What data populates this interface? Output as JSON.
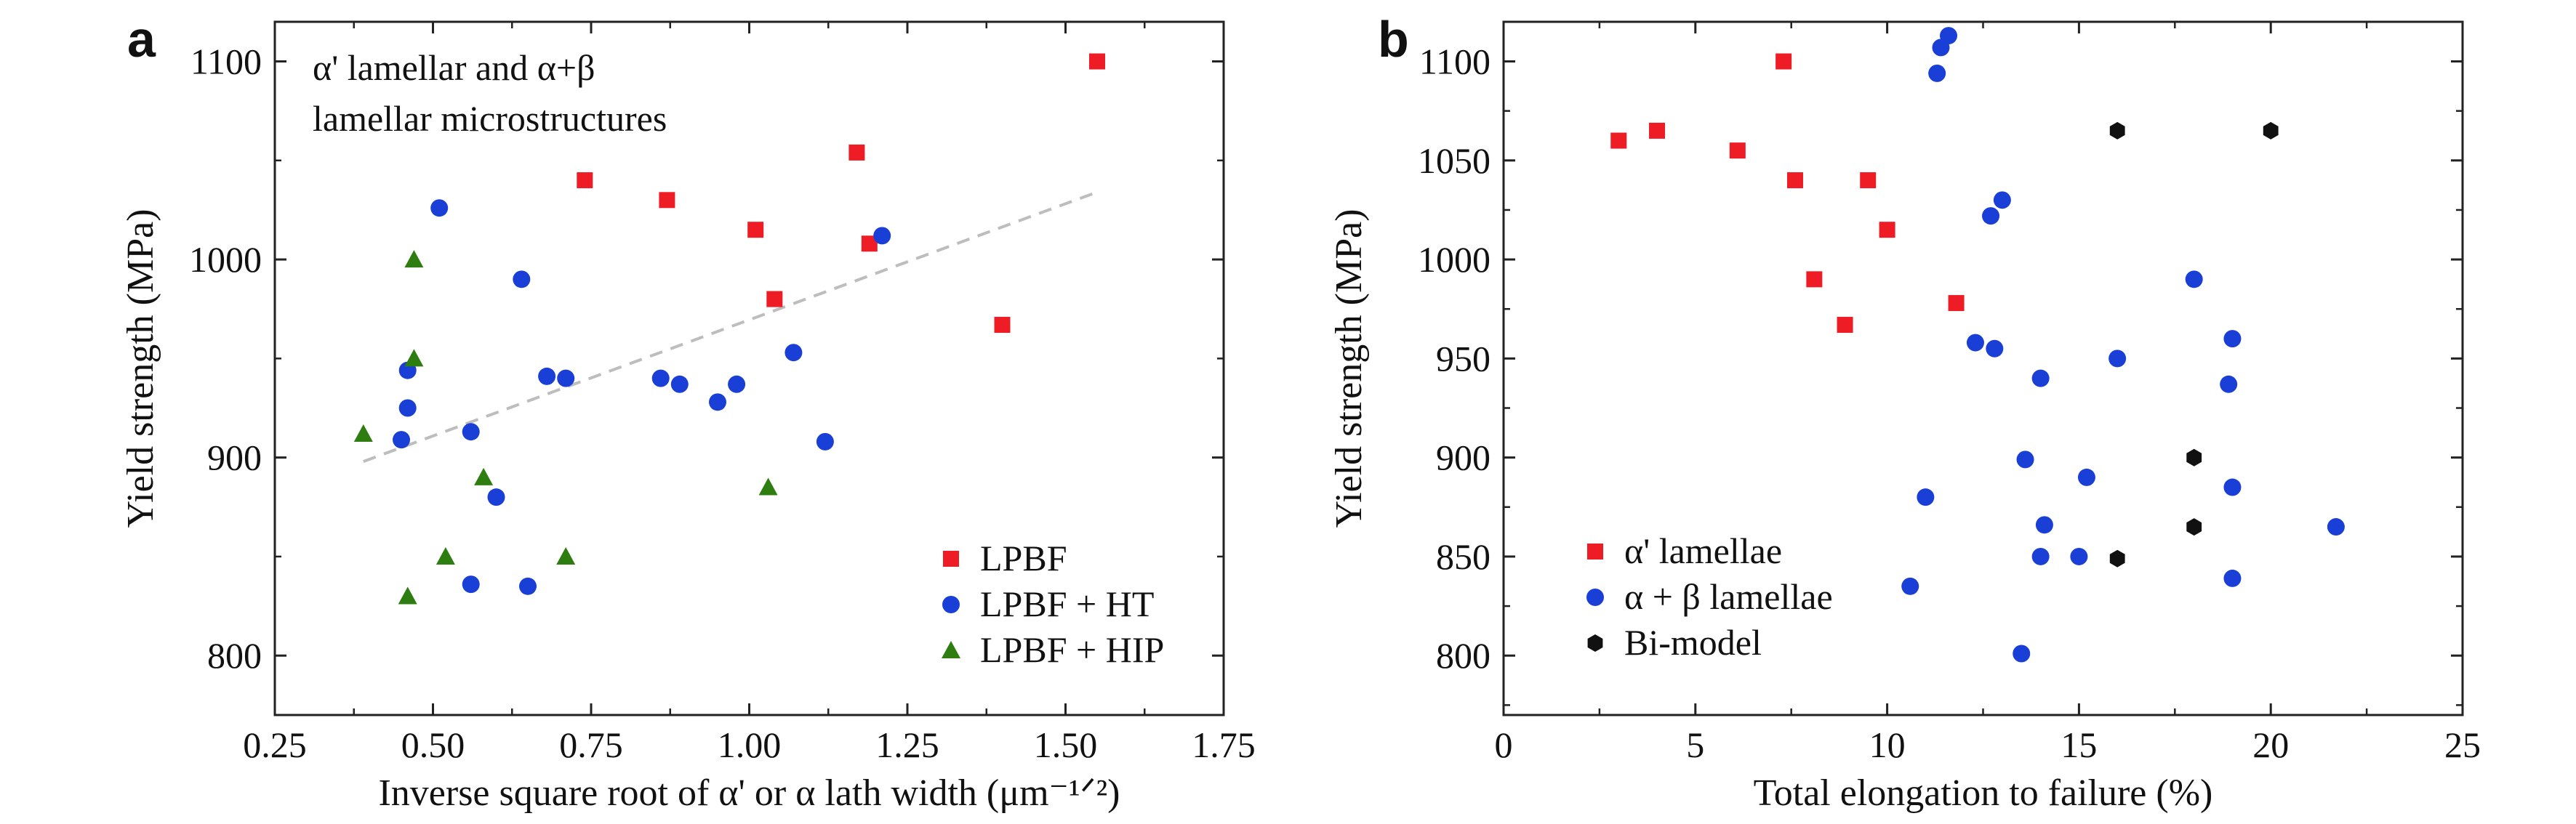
{
  "chart_data": [
    {
      "type": "scatter",
      "panel_label": "a",
      "title": "",
      "xlabel": "Inverse square root of α' or α lath width (μm⁻¹ᐟ²)",
      "ylabel": "Yield strength (MPa)",
      "xlim": [
        0.25,
        1.75
      ],
      "ylim": [
        770,
        1120
      ],
      "xticks": [
        "0.25",
        "0.50",
        "0.75",
        "1.00",
        "1.25",
        "1.50",
        "1.75"
      ],
      "yticks": [
        "800",
        "900",
        "1000",
        "1100"
      ],
      "annotation": [
        "α' lamellar and α+β",
        "lamellar microstructures"
      ],
      "legend_position": "bottom-right",
      "trendline": {
        "style": "dashed",
        "color": "#bdbdbd",
        "points": [
          [
            0.39,
            898
          ],
          [
            1.55,
            1034
          ]
        ]
      },
      "series": [
        {
          "name": "LPBF",
          "marker": "square",
          "color": "#ee1c25",
          "points": [
            [
              0.74,
              1040
            ],
            [
              0.87,
              1030
            ],
            [
              1.01,
              1015
            ],
            [
              1.04,
              980
            ],
            [
              1.17,
              1054
            ],
            [
              1.19,
              1008
            ],
            [
              1.4,
              967
            ],
            [
              1.55,
              1100
            ]
          ]
        },
        {
          "name": "LPBF + HT",
          "marker": "circle",
          "color": "#1a3fd6",
          "points": [
            [
              0.45,
              909
            ],
            [
              0.46,
              925
            ],
            [
              0.46,
              944
            ],
            [
              0.51,
              1026
            ],
            [
              0.56,
              913
            ],
            [
              0.56,
              836
            ],
            [
              0.6,
              880
            ],
            [
              0.64,
              990
            ],
            [
              0.65,
              835
            ],
            [
              0.68,
              941
            ],
            [
              0.71,
              940
            ],
            [
              0.86,
              940
            ],
            [
              0.89,
              937
            ],
            [
              0.95,
              928
            ],
            [
              0.98,
              937
            ],
            [
              1.07,
              953
            ],
            [
              1.12,
              908
            ],
            [
              1.21,
              1012
            ]
          ]
        },
        {
          "name": "LPBF + HIP",
          "marker": "triangle",
          "color": "#2e7d10",
          "points": [
            [
              0.39,
              912
            ],
            [
              0.46,
              830
            ],
            [
              0.47,
              1000
            ],
            [
              0.47,
              950
            ],
            [
              0.52,
              850
            ],
            [
              0.58,
              890
            ],
            [
              0.71,
              850
            ],
            [
              1.03,
              885
            ]
          ]
        }
      ]
    },
    {
      "type": "scatter",
      "panel_label": "b",
      "title": "",
      "xlabel": "Total elongation to failure (%)",
      "ylabel": "Yield strength (MPa)",
      "xlim": [
        0,
        25
      ],
      "ylim": [
        770,
        1120
      ],
      "xticks": [
        "0",
        "5",
        "10",
        "15",
        "20",
        "25"
      ],
      "yticks": [
        "800",
        "850",
        "900",
        "950",
        "1000",
        "1050",
        "1100"
      ],
      "legend_position": "bottom-left",
      "series": [
        {
          "name": "α' lamellae",
          "marker": "square",
          "color": "#ee1c25",
          "points": [
            [
              3.0,
              1060
            ],
            [
              4.0,
              1065
            ],
            [
              6.1,
              1055
            ],
            [
              7.3,
              1100
            ],
            [
              7.6,
              1040
            ],
            [
              8.1,
              990
            ],
            [
              8.9,
              967
            ],
            [
              9.5,
              1040
            ],
            [
              10.0,
              1015
            ],
            [
              11.8,
              978
            ]
          ]
        },
        {
          "name": "α + β lamellae",
          "marker": "circle",
          "color": "#1a3fd6",
          "points": [
            [
              11.3,
              1094
            ],
            [
              11.4,
              1107
            ],
            [
              11.6,
              1113
            ],
            [
              10.6,
              835
            ],
            [
              11.0,
              880
            ],
            [
              12.3,
              958
            ],
            [
              12.7,
              1022
            ],
            [
              12.8,
              955
            ],
            [
              13.0,
              1030
            ],
            [
              13.5,
              801
            ],
            [
              13.6,
              899
            ],
            [
              14.0,
              940
            ],
            [
              14.0,
              850
            ],
            [
              14.1,
              866
            ],
            [
              15.0,
              850
            ],
            [
              15.2,
              890
            ],
            [
              16.0,
              950
            ],
            [
              18.0,
              990
            ],
            [
              18.9,
              937
            ],
            [
              19.0,
              960
            ],
            [
              19.0,
              885
            ],
            [
              19.0,
              839
            ],
            [
              21.7,
              865
            ]
          ]
        },
        {
          "name": "Bi-model",
          "marker": "hexagon",
          "color": "#111111",
          "points": [
            [
              16.0,
              1065
            ],
            [
              20.0,
              1065
            ],
            [
              18.0,
              900
            ],
            [
              18.0,
              865
            ],
            [
              16.0,
              849
            ]
          ]
        }
      ]
    }
  ]
}
